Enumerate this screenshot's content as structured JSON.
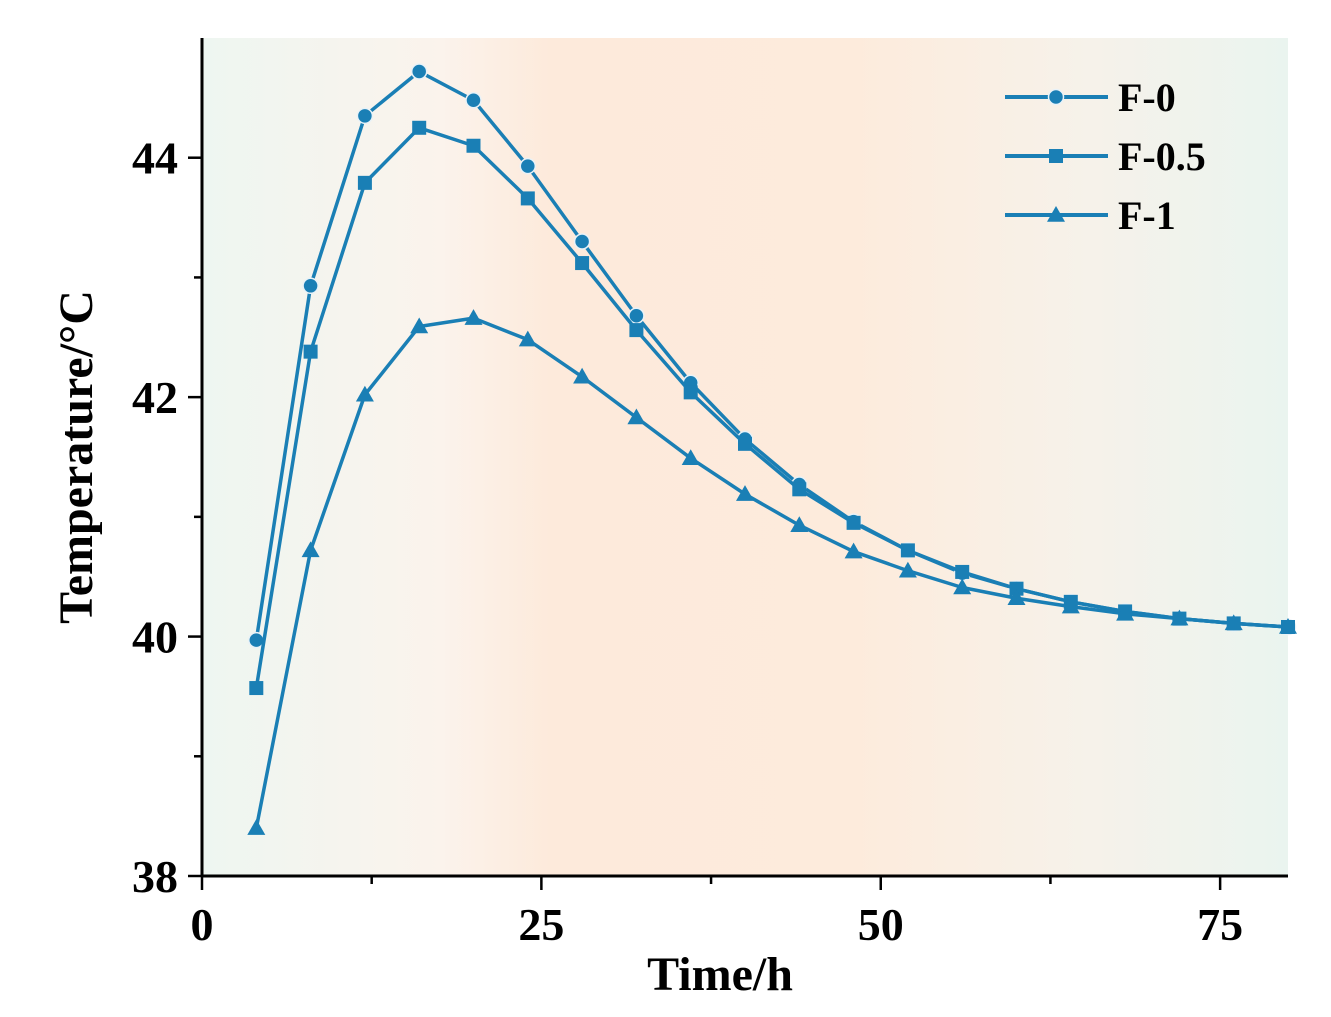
{
  "chart_data": {
    "type": "line",
    "title": "",
    "xlabel": "Time/h",
    "ylabel": "Temperature/°C",
    "xlim": [
      0,
      80
    ],
    "ylim": [
      38,
      45
    ],
    "xticks": [
      0,
      25,
      50,
      75
    ],
    "yticks": [
      38,
      40,
      42,
      44
    ],
    "x_minor_ticks": [
      12.5,
      37.5,
      62.5
    ],
    "y_minor_ticks": [
      39,
      41,
      43
    ],
    "line_color": "#1a7fb5",
    "legend_position": "top-right",
    "x": [
      4,
      8,
      12,
      16,
      20,
      24,
      28,
      32,
      36,
      40,
      44,
      48,
      52,
      56,
      60,
      64,
      68,
      72,
      76,
      80
    ],
    "series": [
      {
        "name": "F-0",
        "marker": "circle",
        "values": [
          39.97,
          42.93,
          44.35,
          44.72,
          44.48,
          43.93,
          43.3,
          42.68,
          42.12,
          41.65,
          41.27,
          40.96,
          40.72,
          40.53,
          40.4,
          40.29,
          40.21,
          40.15,
          40.11,
          40.08
        ]
      },
      {
        "name": "F-0.5",
        "marker": "square",
        "values": [
          39.57,
          42.38,
          43.79,
          44.25,
          44.1,
          43.66,
          43.12,
          42.56,
          42.04,
          41.61,
          41.23,
          40.95,
          40.72,
          40.54,
          40.4,
          40.29,
          40.21,
          40.15,
          40.11,
          40.08
        ]
      },
      {
        "name": "F-1",
        "marker": "triangle",
        "values": [
          38.4,
          40.72,
          42.02,
          42.59,
          42.66,
          42.48,
          42.17,
          41.83,
          41.49,
          41.19,
          40.93,
          40.71,
          40.55,
          40.41,
          40.32,
          40.25,
          40.19,
          40.15,
          40.11,
          40.08
        ]
      }
    ]
  }
}
